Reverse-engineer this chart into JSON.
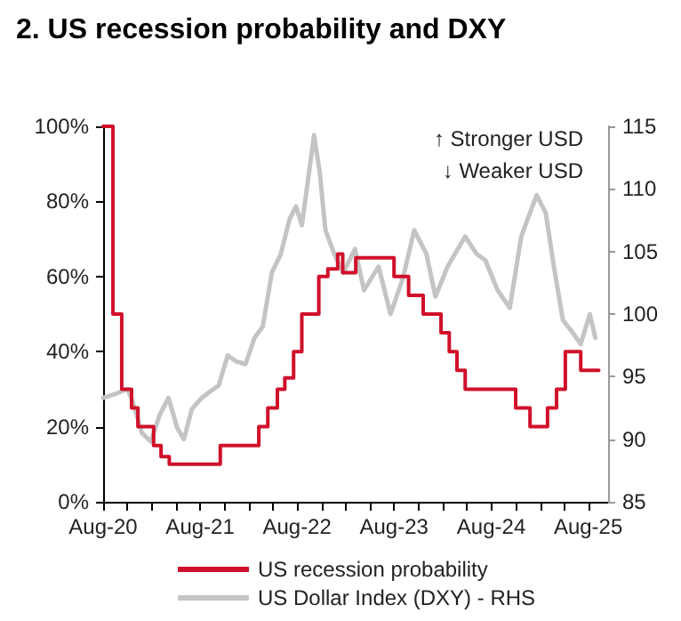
{
  "chart_data": {
    "type": "line",
    "title": "2. US recession probability and DXY",
    "xlim": [
      "2020-08-01",
      "2025-10-15"
    ],
    "xticks": [
      {
        "value": "2020-08-01",
        "label": "Aug-20"
      },
      {
        "value": "2020-11-01",
        "label": null
      },
      {
        "value": "2021-02-01",
        "label": null
      },
      {
        "value": "2021-05-01",
        "label": null
      },
      {
        "value": "2021-08-01",
        "label": "Aug-21"
      },
      {
        "value": "2021-11-01",
        "label": null
      },
      {
        "value": "2022-02-01",
        "label": null
      },
      {
        "value": "2022-05-01",
        "label": null
      },
      {
        "value": "2022-08-01",
        "label": "Aug-22"
      },
      {
        "value": "2022-11-01",
        "label": null
      },
      {
        "value": "2023-02-01",
        "label": null
      },
      {
        "value": "2023-05-01",
        "label": null
      },
      {
        "value": "2023-08-01",
        "label": "Aug-23"
      },
      {
        "value": "2023-11-01",
        "label": null
      },
      {
        "value": "2024-02-01",
        "label": null
      },
      {
        "value": "2024-05-01",
        "label": null
      },
      {
        "value": "2024-08-01",
        "label": "Aug-24"
      },
      {
        "value": "2024-11-01",
        "label": null
      },
      {
        "value": "2025-02-01",
        "label": null
      },
      {
        "value": "2025-05-01",
        "label": null
      },
      {
        "value": "2025-08-01",
        "label": "Aug-25"
      }
    ],
    "ylim": [
      0,
      100
    ],
    "yticks": [
      {
        "value": 0,
        "label": "0%"
      },
      {
        "value": 20,
        "label": "20%"
      },
      {
        "value": 40,
        "label": "40%"
      },
      {
        "value": 60,
        "label": "60%"
      },
      {
        "value": 80,
        "label": "80%"
      },
      {
        "value": 100,
        "label": "100%"
      }
    ],
    "y2lim": [
      85,
      115
    ],
    "y2ticks": [
      85,
      90,
      95,
      100,
      105,
      110,
      115
    ],
    "grid": false,
    "legend": "bottom",
    "annotations": [
      "↑ Stronger USD",
      "↓ Weaker USD"
    ],
    "series": [
      {
        "name": "US recession probability",
        "type": "step",
        "color": "#d0102a",
        "x": [
          "2020-08-01",
          "2020-09-07",
          "2020-10-10",
          "2020-11-16",
          "2020-12-10",
          "2021-02-07",
          "2021-03-07",
          "2021-04-07",
          "2021-10-16",
          "2022-03-10",
          "2022-04-13",
          "2022-05-19",
          "2022-06-16",
          "2022-07-19",
          "2022-08-19",
          "2022-10-22",
          "2022-11-25",
          "2023-01-01",
          "2023-01-20",
          "2023-03-10",
          "2023-08-01",
          "2023-09-25",
          "2023-11-19",
          "2024-01-25",
          "2024-02-25",
          "2024-03-25",
          "2024-04-25",
          "2024-11-01",
          "2024-12-25",
          "2025-03-01",
          "2025-04-04",
          "2025-05-07",
          "2025-07-04",
          "2025-09-10"
        ],
        "values": [
          100,
          50,
          30,
          25,
          20,
          15,
          12,
          10,
          15,
          20,
          25,
          30,
          33,
          40,
          50,
          60,
          62,
          66,
          61,
          65,
          60,
          55,
          50,
          45,
          40,
          35,
          30,
          25,
          20,
          25,
          30,
          40,
          35,
          35
        ]
      },
      {
        "name": "US Dollar Index (DXY) - RHS",
        "axis": "y2",
        "color": "#c4c4c4",
        "x": [
          "2020-08-01",
          "2020-09-13",
          "2020-11-01",
          "2020-11-22",
          "2020-12-25",
          "2021-01-28",
          "2021-03-01",
          "2021-04-04",
          "2021-05-07",
          "2021-06-01",
          "2021-07-01",
          "2021-08-07",
          "2021-09-07",
          "2021-10-10",
          "2021-11-13",
          "2021-12-16",
          "2022-01-19",
          "2022-02-22",
          "2022-03-25",
          "2022-04-28",
          "2022-06-01",
          "2022-07-04",
          "2022-07-28",
          "2022-08-19",
          "2022-09-10",
          "2022-10-04",
          "2022-10-25",
          "2022-11-16",
          "2022-12-19",
          "2023-01-22",
          "2023-03-07",
          "2023-04-10",
          "2023-06-04",
          "2023-07-19",
          "2023-09-04",
          "2023-10-16",
          "2023-12-01",
          "2024-01-04",
          "2024-02-19",
          "2024-04-25",
          "2024-06-07",
          "2024-07-10",
          "2024-08-25",
          "2024-10-10",
          "2024-11-22",
          "2025-01-19",
          "2025-02-22",
          "2025-03-25",
          "2025-04-28",
          "2025-06-01",
          "2025-07-04",
          "2025-08-07",
          "2025-08-28"
        ],
        "values": [
          93.3,
          93.6,
          94.0,
          92.9,
          90.5,
          89.8,
          91.9,
          93.3,
          90.9,
          90.0,
          92.4,
          93.3,
          93.8,
          94.3,
          96.7,
          96.2,
          96.0,
          98.1,
          99.0,
          103.3,
          104.8,
          107.6,
          108.6,
          107.1,
          110.5,
          114.3,
          111.4,
          106.7,
          104.8,
          103.3,
          105.2,
          101.9,
          103.8,
          100.0,
          102.9,
          106.7,
          104.8,
          101.4,
          103.8,
          106.2,
          104.8,
          104.3,
          101.9,
          100.5,
          106.2,
          109.5,
          108.1,
          103.8,
          99.5,
          98.6,
          97.6,
          100.0,
          98.1
        ]
      }
    ]
  }
}
